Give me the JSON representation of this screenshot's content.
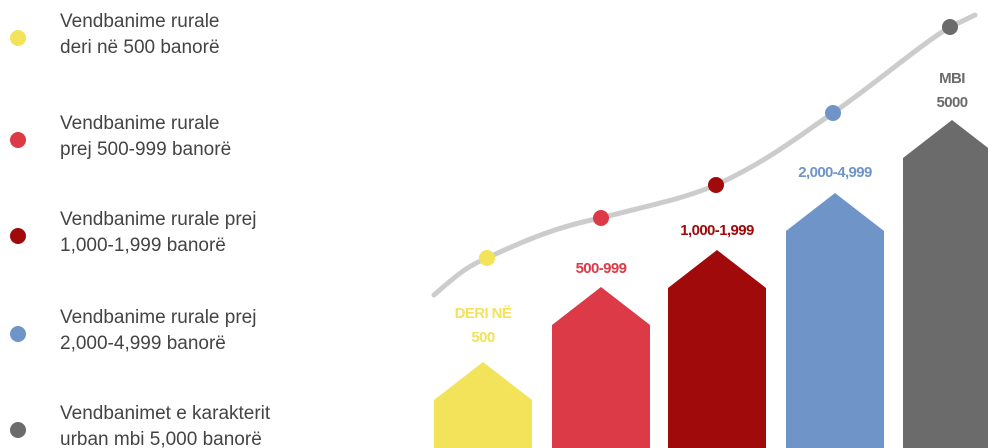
{
  "legend": [
    {
      "color": "#f2e35a",
      "lines": [
        "Vendbanime rurale",
        "deri në 500 banorë"
      ]
    },
    {
      "color": "#dc3a47",
      "lines": [
        "Vendbanime rurale",
        "prej 500-999 banorë"
      ]
    },
    {
      "color": "#a00a0a",
      "lines": [
        "Vendbanime rurale prej",
        "1,000-1,999 banorë"
      ]
    },
    {
      "color": "#6f95c8",
      "lines": [
        "Vendbanime rurale prej",
        "2,000-4,999 banorë"
      ]
    },
    {
      "color": "#6b6b6b",
      "lines": [
        "Vendbanimet e karakterit",
        "urban mbi 5,000 banorë"
      ]
    }
  ],
  "arrows": [
    {
      "color": "#f2e35a",
      "lines": [
        "DERI NË",
        "500"
      ]
    },
    {
      "color": "#dc3a47",
      "lines": [
        "500-999"
      ]
    },
    {
      "color": "#a00a0a",
      "lines": [
        "1,000-1,999"
      ]
    },
    {
      "color": "#6f95c8",
      "lines": [
        "2,000-4,999"
      ]
    },
    {
      "color": "#6b6b6b",
      "lines": [
        "MBI",
        "5000"
      ]
    }
  ]
}
